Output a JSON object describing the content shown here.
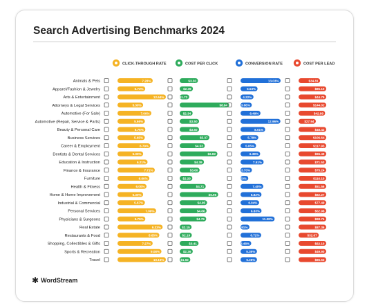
{
  "chart_data": {
    "type": "bar",
    "title": "Search Advertising Benchmarks 2024",
    "categories": [
      "Animals & Pets",
      "Apparel/Fashion & Jewelry",
      "Arts & Entertainment",
      "Attorneys & Legal Services",
      "Automotive (For Sale)",
      "Automotive (Repair, Service & Parts)",
      "Beauty & Personal Care",
      "Business Services",
      "Career & Employment",
      "Dentists & Dental Services",
      "Education & Instruction",
      "Finance & Insurance",
      "Furniture",
      "Health & Fitness",
      "Home & Home Improvement",
      "Industrial & Commercial",
      "Personal Services",
      "Physicians & Surgeons",
      "Real Estate",
      "Restaurants & Food",
      "Shopping, Collectibles & Gifts",
      "Sports & Recreation",
      "Travel"
    ],
    "series": [
      {
        "name": "CLICK-THROUGH RATE",
        "color": "#f5b324",
        "max": 10,
        "labels": [
          "7.28%",
          "5.73%",
          "12.64%",
          "5.30%",
          "7.00%",
          "5.66%",
          "5.76%",
          "5.65%",
          "6.79%",
          "5.30%",
          "6.21%",
          "7.71%",
          "6.60%",
          "6.00%",
          "5.30%",
          "5.67%",
          "7.99%",
          "5.75%",
          "9.33%",
          "8.65%",
          "7.27%",
          "9.08%",
          "10.16%"
        ],
        "values": [
          7.28,
          5.73,
          12.64,
          5.3,
          7.0,
          5.66,
          5.76,
          5.65,
          6.79,
          5.3,
          6.21,
          7.71,
          6.6,
          6.0,
          5.3,
          5.67,
          7.99,
          5.75,
          9.33,
          8.65,
          7.27,
          9.08,
          10.16
        ]
      },
      {
        "name": "COST PER CLICK",
        "color": "#2eab5c",
        "max": 9.5,
        "labels": [
          "$3.30",
          "$2.39",
          "$1.72",
          "$8.94",
          "$2.34",
          "$3.50",
          "$3.50",
          "$5.37",
          "$4.53",
          "$6.82",
          "$4.39",
          "$3.60",
          "$2.29",
          "$4.71",
          "$6.96",
          "$4.95",
          "$4.86",
          "$4.79",
          "$2.15",
          "$2.19",
          "$3.41",
          "$2.36",
          "$1.92"
        ],
        "values": [
          3.3,
          2.39,
          1.72,
          8.94,
          2.34,
          3.5,
          3.5,
          5.37,
          4.53,
          6.82,
          4.39,
          3.6,
          2.29,
          4.71,
          6.96,
          4.95,
          4.86,
          4.79,
          2.15,
          2.19,
          3.41,
          2.36,
          1.92
        ]
      },
      {
        "name": "CONVERSION RATE",
        "color": "#2170d8",
        "max": 13.03,
        "labels": [
          "13.03%",
          "5.53%",
          "4.22%",
          "3.66%",
          "6.49%",
          "12.96%",
          "8.01%",
          "5.78%",
          "5.05%",
          "6.38%",
          "7.51%",
          "3.70%",
          "2.53%",
          "7.40%",
          "6.82%",
          "6.04%",
          "6.83%",
          "11.08%",
          "2.91%",
          "6.72%",
          "3.48%",
          "5.35%",
          "5.36%"
        ],
        "values": [
          13.03,
          5.53,
          4.22,
          3.66,
          6.49,
          12.96,
          8.01,
          5.78,
          5.05,
          6.38,
          7.51,
          3.7,
          2.53,
          7.4,
          6.82,
          6.04,
          6.83,
          11.08,
          2.91,
          6.72,
          3.48,
          5.35,
          5.36
        ]
      },
      {
        "name": "COST PER LEAD",
        "color": "#e8492f",
        "max": 44.79,
        "labels": [
          "$34.81",
          "$85.10",
          "$44.79",
          "$144.02",
          "$42.99",
          "$27.94",
          "$48.42",
          "$106.64",
          "$117.93",
          "$96.49",
          "$71.53",
          "$75.24",
          "$116.10",
          "$51.56",
          "$82.27",
          "$77.49",
          "$52.98",
          "$98.74",
          "$87.36",
          "$32.67",
          "$62.10",
          "$49.90",
          "$86.63"
        ],
        "values": [
          34.81,
          85.1,
          44.79,
          144.02,
          42.99,
          27.94,
          48.42,
          106.64,
          117.93,
          96.49,
          71.53,
          75.24,
          116.1,
          51.56,
          82.27,
          77.49,
          52.98,
          98.74,
          87.36,
          32.67,
          62.1,
          49.9,
          86.63
        ]
      }
    ]
  },
  "brand": {
    "name": "WordStream",
    "icon": "wordstream-logo-icon"
  }
}
